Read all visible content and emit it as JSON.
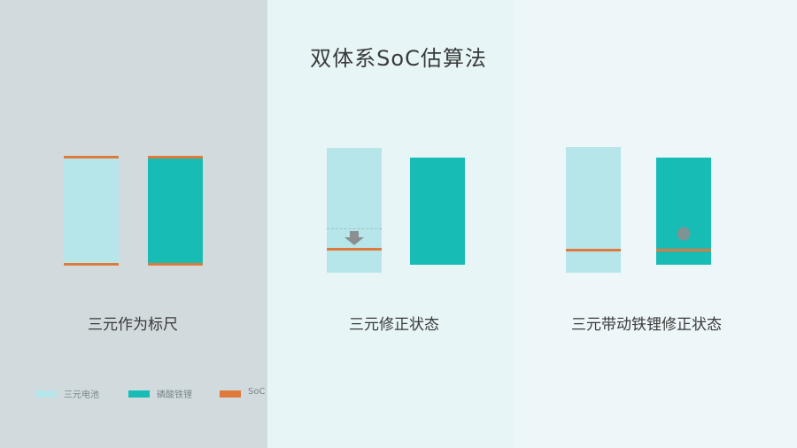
{
  "title": "双体系SoC估算法",
  "captions": [
    "三元作为标尺",
    "三元修正状态",
    "三元带动铁锂修正状态"
  ],
  "legend": [
    {
      "label": "三元电池",
      "color": "#b7e6ea"
    },
    {
      "label": "磷酸铁锂",
      "color": "#17bcb5"
    },
    {
      "label": "SoC",
      "color": "#e07a3c"
    }
  ],
  "colors": {
    "ternary": "#b7e6ea",
    "lfp": "#17bcb5",
    "soc": "#e07a3c",
    "arrow": "#8a8f90"
  }
}
